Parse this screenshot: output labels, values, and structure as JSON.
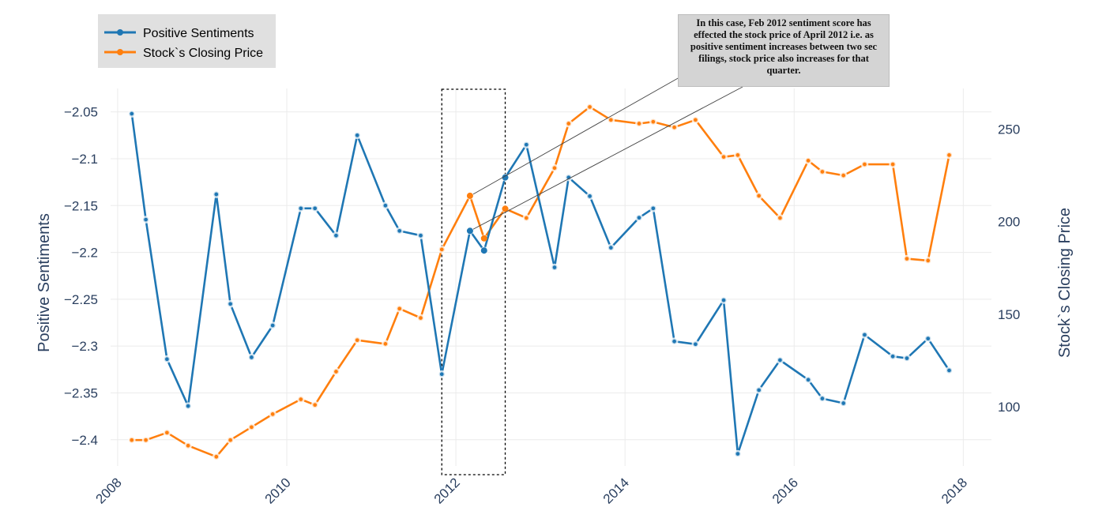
{
  "chart_data": {
    "type": "line",
    "x": [
      "2008-03",
      "2008-05",
      "2008-08",
      "2008-11",
      "2009-03",
      "2009-05",
      "2009-08",
      "2009-11",
      "2010-03",
      "2010-05",
      "2010-08",
      "2010-11",
      "2011-03",
      "2011-05",
      "2011-08",
      "2011-11",
      "2012-03",
      "2012-05",
      "2012-08",
      "2012-11",
      "2013-03",
      "2013-05",
      "2013-08",
      "2013-11",
      "2014-03",
      "2014-05",
      "2014-08",
      "2014-11",
      "2015-03",
      "2015-05",
      "2015-08",
      "2015-11",
      "2016-03",
      "2016-05",
      "2016-08",
      "2016-11",
      "2017-03",
      "2017-05",
      "2017-08",
      "2017-11"
    ],
    "series": [
      {
        "name": "Positive Sentiments",
        "axis": "y",
        "color": "#1f77b4",
        "values": [
          -2.052,
          -2.165,
          -2.314,
          -2.364,
          -2.138,
          -2.255,
          -2.312,
          -2.278,
          -2.153,
          -2.153,
          -2.182,
          -2.075,
          -2.15,
          -2.177,
          -2.182,
          -2.33,
          -2.177,
          -2.198,
          -2.12,
          -2.085,
          -2.216,
          -2.12,
          -2.14,
          -2.195,
          -2.163,
          -2.153,
          -2.295,
          -2.298,
          -2.251,
          -2.415,
          -2.347,
          -2.315,
          -2.336,
          -2.356,
          -2.361,
          -2.288,
          -2.311,
          -2.313,
          -2.292,
          -2.326
        ]
      },
      {
        "name": "Stock`s Closing Price",
        "axis": "y2",
        "color": "#ff7f0e",
        "values": [
          82,
          82,
          86,
          79,
          73,
          82,
          89,
          96,
          104,
          101,
          119,
          136,
          134,
          153,
          148,
          185,
          214,
          191,
          207,
          202,
          229,
          253,
          262,
          255,
          253,
          254,
          251,
          255,
          235,
          236,
          214,
          202,
          233,
          227,
          225,
          231,
          231,
          180,
          179,
          236
        ]
      }
    ],
    "xlabel": "",
    "ylabel": "Positive Sentiments",
    "y2label": "Stock`s Closing Price",
    "xlim": [
      "2007-12",
      "2018-05"
    ],
    "ylim": [
      -2.428,
      -2.025
    ],
    "y2lim": [
      68,
      272
    ],
    "x_ticks": [
      2008,
      2010,
      2012,
      2014,
      2016,
      2018
    ],
    "y_ticks": [
      -2.05,
      -2.1,
      -2.15,
      -2.2,
      -2.25,
      -2.3,
      -2.35,
      -2.4
    ],
    "y_tick_labels": [
      "−2.05",
      "−2.1",
      "−2.15",
      "−2.2",
      "−2.25",
      "−2.3",
      "−2.35",
      "−2.4"
    ],
    "y2_ticks": [
      100,
      150,
      200,
      250
    ],
    "grid": true,
    "legend_position": "top-left",
    "highlight_box": {
      "x_start": "2011-11",
      "x_end": "2012-08",
      "style": "dotted"
    },
    "annotation": {
      "text": "In this case, Feb 2012 sentiment score has effected the stock price of April 2012 i.e. as positive sentiment increases between two sec filings, stock price also increases for that quarter.",
      "targets": [
        "2012-03 Stock`s Closing Price",
        "2012-03 Positive Sentiments"
      ]
    }
  }
}
